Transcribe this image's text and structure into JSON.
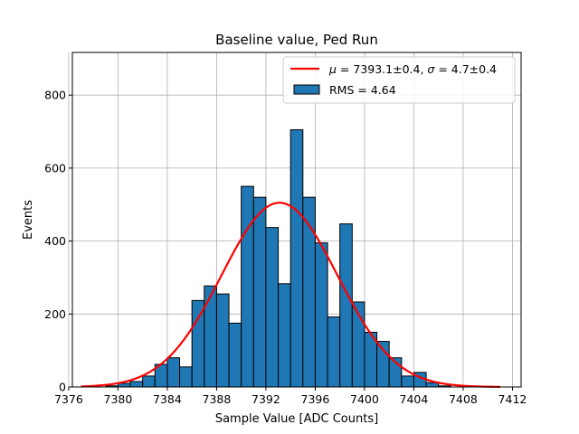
{
  "chart_data": {
    "type": "bar",
    "title": "Baseline value, Ped Run",
    "xlabel": "Sample Value [ADC Counts]",
    "ylabel": "Events",
    "xlim": [
      7376.3,
      7412.7
    ],
    "ylim": [
      0,
      917
    ],
    "grid": true,
    "x_ticks": [
      7376,
      7380,
      7384,
      7388,
      7392,
      7396,
      7400,
      7404,
      7408,
      7412
    ],
    "y_ticks": [
      0,
      200,
      400,
      600,
      800
    ],
    "histogram": {
      "bin_width": 1,
      "bin_left_edges": [
        7379,
        7380,
        7381,
        7382,
        7383,
        7384,
        7385,
        7386,
        7387,
        7388,
        7389,
        7390,
        7391,
        7392,
        7393,
        7394,
        7395,
        7396,
        7397,
        7398,
        7399,
        7400,
        7401,
        7402,
        7403,
        7404,
        7405,
        7406
      ],
      "counts": [
        3,
        10,
        15,
        30,
        62,
        80,
        55,
        237,
        277,
        255,
        175,
        550,
        520,
        437,
        283,
        705,
        520,
        395,
        192,
        447,
        233,
        150,
        125,
        80,
        30,
        40,
        12,
        3
      ],
      "fill_color": "#1f77b4",
      "edge_color": "#000000",
      "legend": "RMS = 4.64"
    },
    "fit": {
      "type": "gaussian",
      "mu": 7393.1,
      "sigma": 4.7,
      "amplitude": 505,
      "x_range": [
        7377,
        7411
      ],
      "color": "#ff0000",
      "legend_parts": {
        "mu_symbol": "μ",
        "mu_text": " = 7393.1±0.4, ",
        "sigma_symbol": "σ",
        "sigma_text": " = 4.7±0.4"
      }
    },
    "legend_position": "upper-right"
  }
}
